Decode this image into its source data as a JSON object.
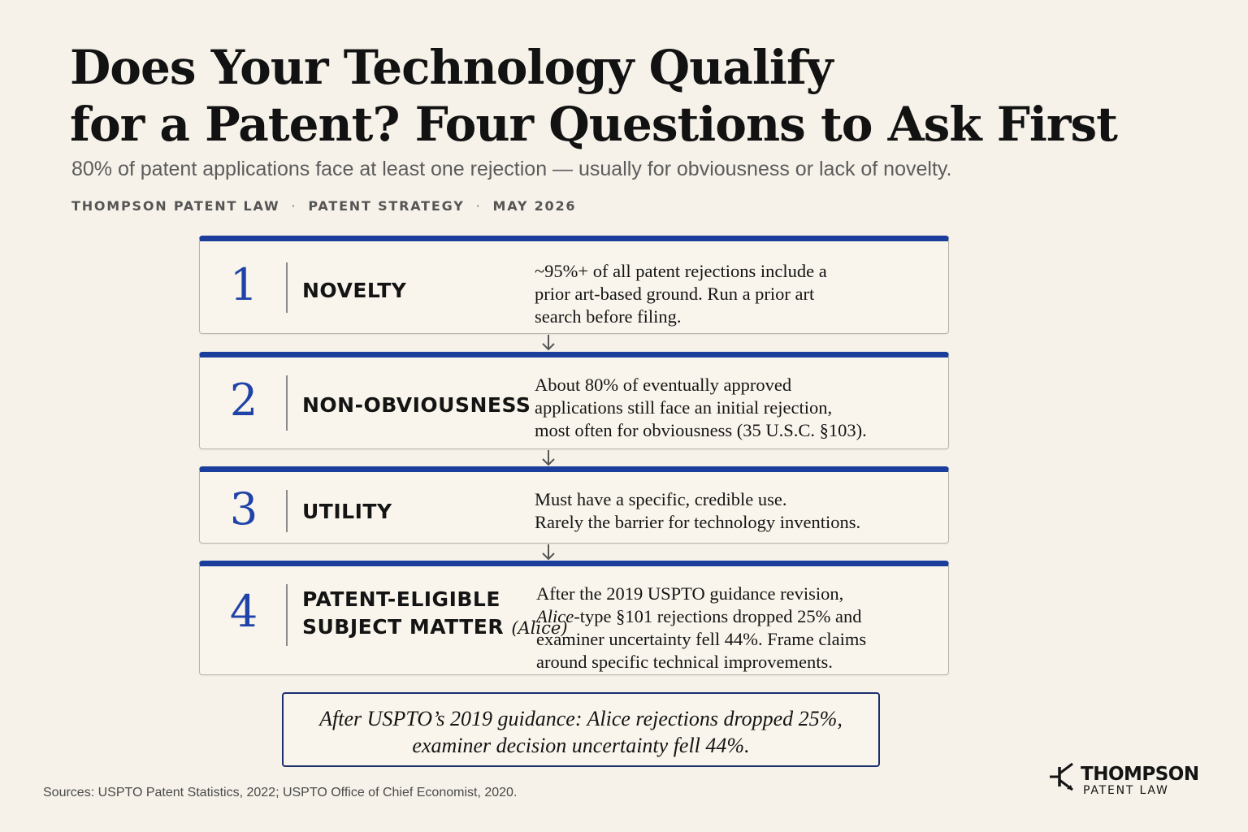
{
  "header": {
    "title_line1": "Does Your Technology Qualify",
    "title_line2": "for a Patent? Four Questions to Ask First",
    "subtitle": "80% of patent applications face at least one rejection — usually for obviousness or lack of novelty.",
    "byline": [
      "THOMPSON PATENT LAW",
      "PATENT STRATEGY",
      "MAY 2026"
    ],
    "byline_separator": "·"
  },
  "steps": [
    {
      "number": "1",
      "label": "NOVELTY",
      "desc_lines": [
        "~95%+ of all patent rejections include a",
        "prior art-based ground. Run a prior art",
        "search before filing."
      ]
    },
    {
      "number": "2",
      "label": "NON-OBVIOUSNESS",
      "desc_lines": [
        "About 80% of eventually approved",
        "applications still face an initial rejection,",
        "most often for obviousness (35 U.S.C. §103)."
      ]
    },
    {
      "number": "3",
      "label": "UTILITY",
      "desc_lines": [
        "Must have a specific, credible use.",
        "Rarely the barrier for technology inventions."
      ]
    },
    {
      "number": "4",
      "label_line1": "PATENT-ELIGIBLE",
      "label_line2": "SUBJECT MATTER",
      "label_suffix": "(Alice)",
      "desc_line1": "After the 2019 USPTO guidance revision,",
      "desc_line2_ital": "Alice",
      "desc_line2_rest": "-type §101 rejections dropped 25% and",
      "desc_line3": "examiner uncertainty fell 44%. Frame claims",
      "desc_line4": "around specific technical improvements."
    }
  ],
  "callout": {
    "line1": "After USPTO’s 2019 guidance: Alice rejections dropped 25%,",
    "line2": "examiner decision uncertainty fell 44%."
  },
  "sources": "Sources: USPTO Patent Statistics, 2022; USPTO Office of Chief Economist, 2020.",
  "logo": {
    "name": "THOMPSON",
    "sub": "PATENT LAW",
    "icon": "circuit-transistor-icon"
  },
  "colors": {
    "accent_blue": "#1b3d9c",
    "number_blue": "#1f43a8",
    "background": "#f6f2e9",
    "callout_border": "#1b2f6e"
  }
}
